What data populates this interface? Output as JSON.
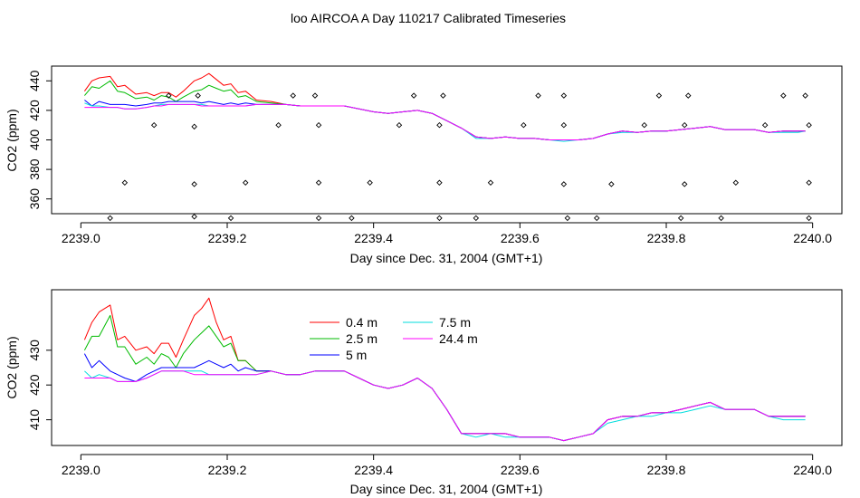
{
  "title": "loo AIRCOA A  Day 110217  Calibrated Timeseries",
  "colors": {
    "0.4 m": "#ff0000",
    "2.5 m": "#00bb00",
    "5 m": "#0000ff",
    "7.5 m": "#00dddd",
    "24.4 m": "#ff00ff"
  },
  "chart_data": [
    {
      "type": "line",
      "panel": "top",
      "xlabel": "Day since Dec. 31, 2004 (GMT+1)",
      "ylabel": "CO2 (ppm)",
      "xticks": [
        "2239.0",
        "2239.2",
        "2239.4",
        "2239.6",
        "2239.8",
        "2240.0"
      ],
      "yticks": [
        "360",
        "380",
        "400",
        "420",
        "440"
      ],
      "xlim": [
        2238.96,
        2240.04
      ],
      "ylim": [
        350,
        450
      ],
      "legend": "none",
      "x": [
        2239.005,
        2239.015,
        2239.025,
        2239.04,
        2239.05,
        2239.06,
        2239.075,
        2239.09,
        2239.1,
        2239.11,
        2239.12,
        2239.13,
        2239.14,
        2239.155,
        2239.165,
        2239.175,
        2239.185,
        2239.195,
        2239.205,
        2239.215,
        2239.225,
        2239.24,
        2239.26,
        2239.28,
        2239.3,
        2239.32,
        2239.34,
        2239.36,
        2239.38,
        2239.4,
        2239.42,
        2239.44,
        2239.46,
        2239.48,
        2239.5,
        2239.52,
        2239.54,
        2239.56,
        2239.58,
        2239.6,
        2239.62,
        2239.64,
        2239.66,
        2239.68,
        2239.7,
        2239.72,
        2239.74,
        2239.76,
        2239.78,
        2239.8,
        2239.82,
        2239.84,
        2239.86,
        2239.88,
        2239.9,
        2239.92,
        2239.94,
        2239.96,
        2239.98,
        2239.99
      ],
      "series": [
        {
          "name": "0.4 m",
          "values": [
            433,
            440,
            442,
            443,
            436,
            437,
            431,
            432,
            430,
            432,
            432,
            429,
            433,
            440,
            442,
            445,
            441,
            437,
            438,
            432,
            433,
            427,
            426,
            424,
            423,
            423,
            423,
            423,
            421,
            419,
            418,
            419,
            420,
            418,
            413,
            408,
            402,
            401,
            402,
            401,
            401,
            400,
            400,
            400,
            401,
            404,
            406,
            405,
            406,
            406,
            407,
            408,
            409,
            407,
            407,
            407,
            405,
            406,
            406,
            406
          ]
        },
        {
          "name": "2.5 m",
          "values": [
            430,
            436,
            435,
            440,
            433,
            432,
            428,
            429,
            427,
            430,
            429,
            426,
            429,
            433,
            434,
            437,
            435,
            433,
            434,
            429,
            430,
            426,
            425,
            424,
            423,
            423,
            423,
            423,
            421,
            419,
            418,
            419,
            420,
            418,
            413,
            408,
            402,
            401,
            402,
            401,
            401,
            400,
            400,
            400,
            401,
            404,
            406,
            405,
            406,
            406,
            407,
            408,
            409,
            407,
            407,
            407,
            405,
            406,
            406,
            406
          ]
        },
        {
          "name": "5 m",
          "values": [
            427,
            423,
            426,
            424,
            424,
            424,
            423,
            424,
            425,
            425,
            426,
            426,
            426,
            426,
            425,
            426,
            425,
            424,
            425,
            424,
            425,
            424,
            424,
            424,
            423,
            423,
            423,
            423,
            421,
            419,
            418,
            419,
            420,
            418,
            413,
            408,
            402,
            401,
            402,
            401,
            401,
            400,
            400,
            400,
            401,
            404,
            406,
            405,
            406,
            406,
            407,
            408,
            409,
            407,
            407,
            407,
            405,
            406,
            406,
            406
          ]
        },
        {
          "name": "7.5 m",
          "values": [
            425,
            423,
            423,
            422,
            422,
            421,
            421,
            422,
            423,
            424,
            424,
            424,
            424,
            424,
            424,
            423,
            423,
            423,
            423,
            423,
            423,
            424,
            424,
            424,
            423,
            423,
            423,
            423,
            421,
            419,
            418,
            419,
            420,
            418,
            413,
            408,
            401,
            401,
            402,
            401,
            401,
            400,
            399,
            400,
            401,
            404,
            405,
            405,
            406,
            406,
            407,
            408,
            409,
            407,
            407,
            407,
            405,
            405,
            405,
            406
          ]
        },
        {
          "name": "24.4 m",
          "values": [
            422,
            422,
            422,
            422,
            422,
            421,
            421,
            422,
            423,
            423,
            424,
            424,
            424,
            424,
            423,
            423,
            423,
            423,
            423,
            423,
            423,
            424,
            424,
            424,
            423,
            423,
            423,
            423,
            421,
            419,
            418,
            419,
            420,
            418,
            413,
            408,
            402,
            401,
            402,
            401,
            401,
            400,
            400,
            400,
            401,
            404,
            406,
            405,
            406,
            406,
            407,
            408,
            409,
            407,
            407,
            407,
            405,
            406,
            406,
            406
          ]
        }
      ],
      "markers": {
        "shape": "open-diamond",
        "points": [
          [
            2239.04,
            347
          ],
          [
            2239.06,
            371
          ],
          [
            2239.1,
            410
          ],
          [
            2239.12,
            430
          ],
          [
            2239.155,
            409
          ],
          [
            2239.155,
            348
          ],
          [
            2239.155,
            370
          ],
          [
            2239.16,
            430
          ],
          [
            2239.205,
            347
          ],
          [
            2239.225,
            371
          ],
          [
            2239.27,
            410
          ],
          [
            2239.29,
            430
          ],
          [
            2239.32,
            430
          ],
          [
            2239.325,
            410
          ],
          [
            2239.325,
            371
          ],
          [
            2239.325,
            347
          ],
          [
            2239.37,
            347
          ],
          [
            2239.395,
            371
          ],
          [
            2239.435,
            410
          ],
          [
            2239.455,
            430
          ],
          [
            2239.49,
            410
          ],
          [
            2239.49,
            371
          ],
          [
            2239.49,
            347
          ],
          [
            2239.495,
            430
          ],
          [
            2239.54,
            347
          ],
          [
            2239.56,
            371
          ],
          [
            2239.605,
            410
          ],
          [
            2239.625,
            430
          ],
          [
            2239.66,
            430
          ],
          [
            2239.66,
            410
          ],
          [
            2239.66,
            370
          ],
          [
            2239.665,
            347
          ],
          [
            2239.705,
            347
          ],
          [
            2239.725,
            370
          ],
          [
            2239.77,
            410
          ],
          [
            2239.79,
            430
          ],
          [
            2239.82,
            347
          ],
          [
            2239.825,
            370
          ],
          [
            2239.825,
            410
          ],
          [
            2239.83,
            430
          ],
          [
            2239.875,
            347
          ],
          [
            2239.895,
            371
          ],
          [
            2239.935,
            410
          ],
          [
            2239.96,
            430
          ],
          [
            2239.99,
            430
          ],
          [
            2239.995,
            410
          ],
          [
            2239.995,
            371
          ],
          [
            2239.995,
            347
          ]
        ]
      }
    },
    {
      "type": "line",
      "panel": "bottom",
      "xlabel": "Day since Dec. 31, 2004 (GMT+1)",
      "ylabel": "CO2 (ppm)",
      "xticks": [
        "2239.0",
        "2239.2",
        "2239.4",
        "2239.6",
        "2239.8",
        "2240.0"
      ],
      "yticks": [
        "410",
        "420",
        "430"
      ],
      "xlim": [
        2238.96,
        2240.04
      ],
      "ylim": [
        402.6,
        447.4
      ],
      "legend": "top-center",
      "x": [
        2239.005,
        2239.015,
        2239.025,
        2239.04,
        2239.05,
        2239.06,
        2239.075,
        2239.09,
        2239.1,
        2239.11,
        2239.12,
        2239.13,
        2239.14,
        2239.155,
        2239.165,
        2239.175,
        2239.185,
        2239.195,
        2239.205,
        2239.215,
        2239.225,
        2239.24,
        2239.26,
        2239.28,
        2239.3,
        2239.32,
        2239.34,
        2239.36,
        2239.38,
        2239.4,
        2239.42,
        2239.44,
        2239.46,
        2239.48,
        2239.5,
        2239.52,
        2239.54,
        2239.56,
        2239.58,
        2239.6,
        2239.62,
        2239.64,
        2239.66,
        2239.68,
        2239.7,
        2239.72,
        2239.74,
        2239.76,
        2239.78,
        2239.8,
        2239.82,
        2239.84,
        2239.86,
        2239.88,
        2239.9,
        2239.92,
        2239.94,
        2239.96,
        2239.98,
        2239.99
      ],
      "series": [
        {
          "name": "0.4 m",
          "values": [
            433,
            438,
            441,
            443,
            433,
            434,
            430,
            431,
            429,
            432,
            432,
            428,
            433,
            440,
            442,
            445,
            438,
            433,
            434,
            427,
            427,
            424,
            424,
            423,
            423,
            424,
            424,
            424,
            422,
            420,
            419,
            420,
            422,
            419,
            413,
            406,
            406,
            406,
            406,
            405,
            405,
            405,
            404,
            405,
            406,
            410,
            411,
            411,
            412,
            412,
            413,
            414,
            415,
            413,
            413,
            413,
            411,
            411,
            411,
            411
          ]
        },
        {
          "name": "2.5 m",
          "values": [
            430,
            434,
            434,
            440,
            431,
            431,
            426,
            428,
            426,
            429,
            428,
            425,
            429,
            433,
            435,
            437,
            434,
            431,
            432,
            427,
            427,
            424,
            424,
            423,
            423,
            424,
            424,
            424,
            422,
            420,
            419,
            420,
            422,
            419,
            413,
            406,
            406,
            406,
            406,
            405,
            405,
            405,
            404,
            405,
            406,
            410,
            411,
            411,
            412,
            412,
            413,
            414,
            415,
            413,
            413,
            413,
            411,
            411,
            411,
            411
          ]
        },
        {
          "name": "5 m",
          "values": [
            429,
            425,
            427,
            424,
            423,
            422,
            421,
            423,
            424,
            425,
            425,
            425,
            425,
            425,
            426,
            427,
            426,
            425,
            426,
            424,
            425,
            424,
            424,
            423,
            423,
            424,
            424,
            424,
            422,
            420,
            419,
            420,
            422,
            419,
            413,
            406,
            406,
            406,
            406,
            405,
            405,
            405,
            404,
            405,
            406,
            410,
            411,
            411,
            412,
            412,
            413,
            414,
            415,
            413,
            413,
            413,
            411,
            411,
            411,
            411
          ]
        },
        {
          "name": "7.5 m",
          "values": [
            424,
            422,
            423,
            422,
            421,
            421,
            421,
            422,
            423,
            424,
            424,
            424,
            424,
            424,
            424,
            423,
            423,
            423,
            423,
            423,
            423,
            423,
            424,
            423,
            423,
            424,
            424,
            424,
            422,
            420,
            419,
            420,
            422,
            419,
            413,
            406,
            405,
            406,
            405,
            405,
            405,
            405,
            404,
            405,
            406,
            409,
            410,
            411,
            411,
            412,
            412,
            413,
            414,
            413,
            413,
            413,
            411,
            410,
            410,
            410
          ]
        },
        {
          "name": "24.4 m",
          "values": [
            422,
            422,
            422,
            422,
            421,
            421,
            421,
            422,
            423,
            424,
            424,
            424,
            424,
            423,
            423,
            423,
            423,
            423,
            423,
            423,
            423,
            423,
            424,
            423,
            423,
            424,
            424,
            424,
            422,
            420,
            419,
            420,
            422,
            419,
            413,
            406,
            406,
            406,
            406,
            405,
            405,
            405,
            404,
            405,
            406,
            410,
            411,
            411,
            412,
            412,
            413,
            414,
            415,
            413,
            413,
            413,
            411,
            411,
            411,
            411
          ]
        }
      ]
    }
  ]
}
